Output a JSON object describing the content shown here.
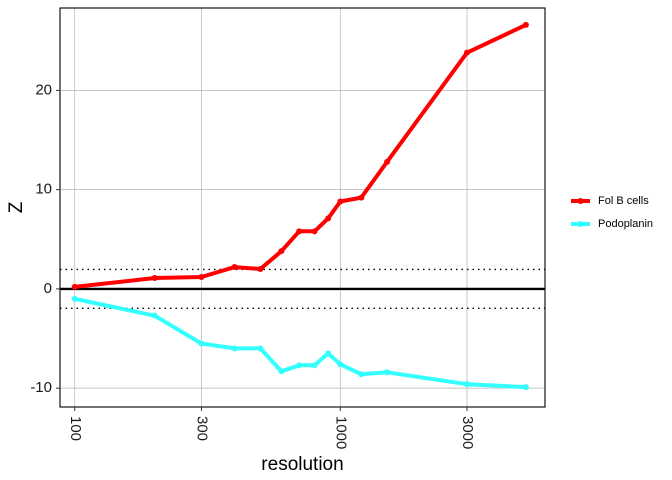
{
  "chart_data": {
    "type": "line",
    "title": "",
    "xlabel": "resolution",
    "ylabel": "Z",
    "x_scale": "log",
    "xlim": [
      88,
      5900
    ],
    "ylim": [
      -11.9,
      28.3
    ],
    "x_ticks": [
      100,
      300,
      1000,
      3000
    ],
    "x_tick_labels": [
      "100",
      "300",
      "1000",
      "3000"
    ],
    "y_ticks": [
      -10,
      0,
      10,
      20
    ],
    "y_tick_labels": [
      "-10",
      "0",
      "10",
      "20"
    ],
    "grid": true,
    "legend_position": "right",
    "reference_lines": [
      {
        "y": 0,
        "style": "solid"
      },
      {
        "y": 1.96,
        "style": "dotted"
      },
      {
        "y": -1.96,
        "style": "dotted"
      }
    ],
    "series": [
      {
        "name": "Fol B cells",
        "color": "#ff0000",
        "x": [
          100,
          200,
          300,
          400,
          500,
          600,
          700,
          800,
          900,
          1000,
          1200,
          1500,
          3000,
          5000
        ],
        "values": [
          0.2,
          1.1,
          1.2,
          2.2,
          2.0,
          3.8,
          5.8,
          5.8,
          7.1,
          8.8,
          9.2,
          12.8,
          23.8,
          26.6
        ]
      },
      {
        "name": "Podoplanin",
        "color": "#33ffff",
        "x": [
          100,
          200,
          300,
          400,
          500,
          600,
          700,
          800,
          900,
          1000,
          1200,
          1500,
          3000,
          5000
        ],
        "values": [
          -1.0,
          -2.7,
          -5.5,
          -6.0,
          -6.0,
          -8.3,
          -7.7,
          -7.7,
          -6.5,
          -7.6,
          -8.6,
          -8.4,
          -9.6,
          -9.9
        ]
      }
    ]
  }
}
